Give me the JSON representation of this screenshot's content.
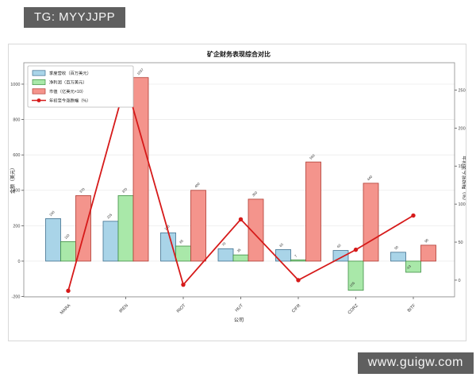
{
  "badges": {
    "telegram": "TG: MYYJJPP",
    "website": "www.guigw.com"
  },
  "chart_data": {
    "type": "bar+line",
    "title": "矿企财务表现综合对比",
    "xlabel": "公司",
    "ylabel_left": "金额（美元）",
    "ylabel_right": "年初至今涨跌幅（%）",
    "categories": [
      "MARA",
      "IREN",
      "RIOT",
      "HUT",
      "CIFR",
      "CORZ",
      "BITF"
    ],
    "series": [
      {
        "name": "季度营收（百万美元）",
        "type": "bar",
        "color": "#a9d4e8",
        "edge": "#41708f",
        "values": [
          240,
          225,
          160,
          70,
          65,
          60,
          50
        ]
      },
      {
        "name": "净利润（百万美元）",
        "type": "bar",
        "color": "#a9e8a9",
        "edge": "#3f8f44",
        "values": [
          110,
          370,
          85,
          35,
          7,
          -165,
          -63
        ]
      },
      {
        "name": "市值（亿美元×10）",
        "type": "bar",
        "color": "#f4948c",
        "edge": "#b03a31",
        "values": [
          370,
          1037,
          400,
          350,
          560,
          440,
          90
        ]
      },
      {
        "name": "年初至今涨跌幅（%）",
        "type": "line",
        "color": "#d61a1a",
        "values": [
          -14,
          260,
          -6,
          80,
          0,
          40,
          85
        ]
      }
    ],
    "left_axis": {
      "ticks": [
        -200,
        0,
        200,
        400,
        600,
        800,
        1000
      ],
      "range": [
        -202,
        1121
      ]
    },
    "right_axis": {
      "ticks": [
        0,
        50,
        100,
        150,
        200,
        250
      ],
      "range": [
        -22,
        286
      ]
    },
    "legend_position": "upper-left",
    "grid": true
  }
}
